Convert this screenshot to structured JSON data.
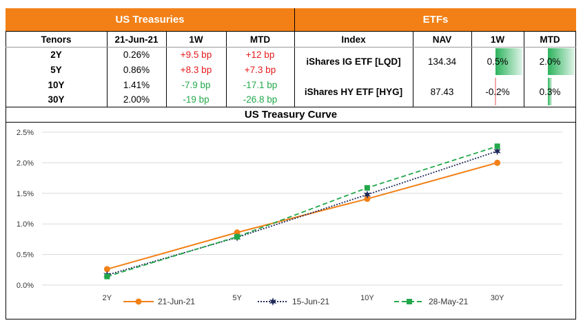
{
  "treasuries": {
    "title": "US Treasuries",
    "headers": {
      "tenor": "Tenors",
      "date": "21-Jun-21",
      "w1": "1W",
      "mtd": "MTD"
    },
    "rows": [
      {
        "tenor": "2Y",
        "yield": "0.26%",
        "w1": "+9.5 bp",
        "w1_dir": "up",
        "mtd": "+12 bp",
        "mtd_dir": "up"
      },
      {
        "tenor": "5Y",
        "yield": "0.86%",
        "w1": "+8.3 bp",
        "w1_dir": "up",
        "mtd": "+7.3 bp",
        "mtd_dir": "up"
      },
      {
        "tenor": "10Y",
        "yield": "1.41%",
        "w1": "-7.9 bp",
        "w1_dir": "down",
        "mtd": "-17.1 bp",
        "mtd_dir": "down"
      },
      {
        "tenor": "30Y",
        "yield": "2.00%",
        "w1": "-19 bp",
        "w1_dir": "down",
        "mtd": "-26.8 bp",
        "mtd_dir": "down"
      }
    ]
  },
  "etfs": {
    "title": "ETFs",
    "headers": {
      "index": "Index",
      "nav": "NAV",
      "w1": "1W",
      "mtd": "MTD"
    },
    "rows": [
      {
        "index": "iShares IG ETF [LQD]",
        "nav": "134.34",
        "w1": "0.5%",
        "w1_value": 0.5,
        "mtd": "2.0%",
        "mtd_value": 2.0
      },
      {
        "index": "iShares HY ETF [HYG]",
        "nav": "87.43",
        "w1": "-0.2%",
        "w1_value": -0.2,
        "mtd": "0.3%",
        "mtd_value": 0.3
      }
    ]
  },
  "colors": {
    "header": "#f28017",
    "up": "#e31a1c",
    "down": "#22a84a",
    "bar_positive": "#2db35d",
    "bar_negative": "#f4a6a6"
  },
  "chart_data": {
    "type": "line",
    "title": "US Treasury Curve",
    "categories": [
      "2Y",
      "5Y",
      "10Y",
      "30Y"
    ],
    "series": [
      {
        "name": "21-Jun-21",
        "values": [
          0.26,
          0.86,
          1.41,
          2.0
        ],
        "color": "#f28017",
        "style": "solid",
        "marker": "circle"
      },
      {
        "name": "15-Jun-21",
        "values": [
          0.165,
          0.78,
          1.48,
          2.19
        ],
        "color": "#1f2a5a",
        "style": "dotted",
        "marker": "star"
      },
      {
        "name": "28-May-21",
        "values": [
          0.14,
          0.79,
          1.59,
          2.27
        ],
        "color": "#22a84a",
        "style": "dashed",
        "marker": "square"
      }
    ],
    "yticks": [
      "0.0%",
      "0.5%",
      "1.0%",
      "1.5%",
      "2.0%",
      "2.5%"
    ],
    "ylim": [
      0,
      2.5
    ],
    "grid": true,
    "legend": "bottom"
  }
}
